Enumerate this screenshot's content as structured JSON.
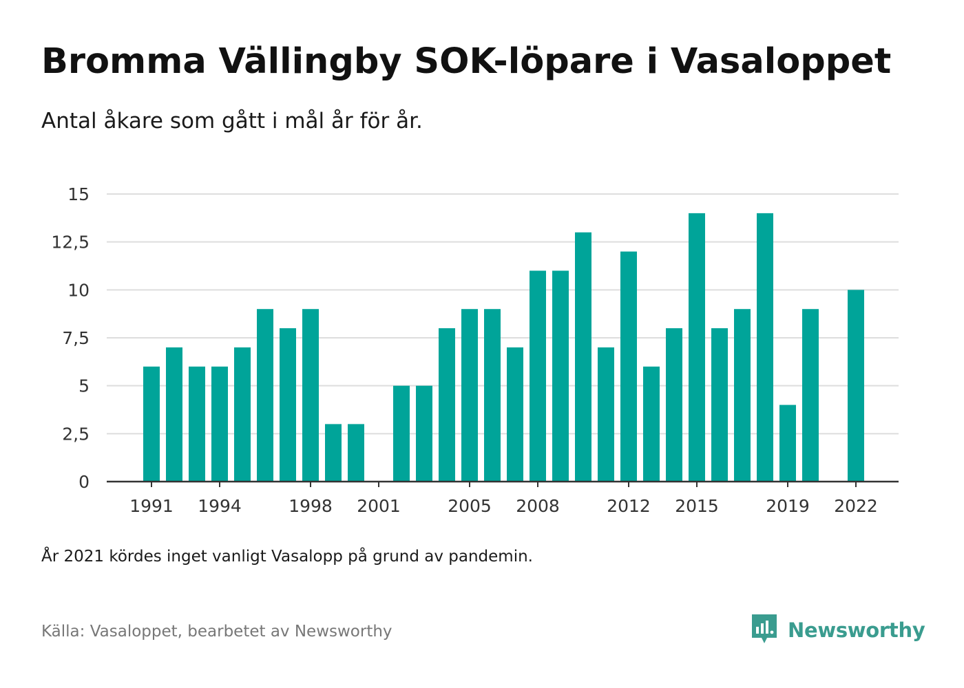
{
  "header": {
    "title": "Bromma Vällingby SOK-löpare i Vasaloppet",
    "subtitle": "Antal åkare som gått i mål år för år."
  },
  "footer": {
    "note": "År 2021 kördes inget vanligt Vasalopp på grund av pandemin.",
    "source": "Källa: Vasaloppet, bearbetet av Newsworthy",
    "brand": "Newsworthy",
    "brand_icon": "newsworthy-logo-icon"
  },
  "colors": {
    "bar": "#00a499",
    "grid": "#dddddd",
    "axis": "#333333",
    "brand": "#3a9c8f"
  },
  "chart_data": {
    "type": "bar",
    "title": "Bromma Vällingby SOK-löpare i Vasaloppet",
    "subtitle": "Antal åkare som gått i mål år för år.",
    "categories": [
      "1991",
      "1992",
      "1993",
      "1994",
      "1995",
      "1996",
      "1997",
      "1998",
      "1999",
      "2000",
      "2001",
      "2002",
      "2003",
      "2004",
      "2005",
      "2006",
      "2007",
      "2008",
      "2009",
      "2010",
      "2011",
      "2012",
      "2013",
      "2014",
      "2015",
      "2016",
      "2017",
      "2018",
      "2019",
      "2020",
      "2021",
      "2022"
    ],
    "values": [
      6,
      7,
      6,
      6,
      7,
      9,
      8,
      9,
      3,
      3,
      null,
      5,
      5,
      8,
      9,
      9,
      7,
      11,
      11,
      13,
      7,
      12,
      6,
      8,
      14,
      8,
      9,
      14,
      4,
      9,
      null,
      10
    ],
    "x_tick_labels": [
      "1991",
      "1994",
      "1998",
      "2001",
      "2005",
      "2008",
      "2012",
      "2015",
      "2019",
      "2022"
    ],
    "y_tick_labels": [
      "0",
      "2,5",
      "5",
      "7,5",
      "10",
      "12,5",
      "15"
    ],
    "y_ticks": [
      0,
      2.5,
      5,
      7.5,
      10,
      12.5,
      15
    ],
    "ylim": [
      0,
      15
    ],
    "xlabel": "",
    "ylabel": "",
    "grid": true,
    "legend": "none"
  }
}
